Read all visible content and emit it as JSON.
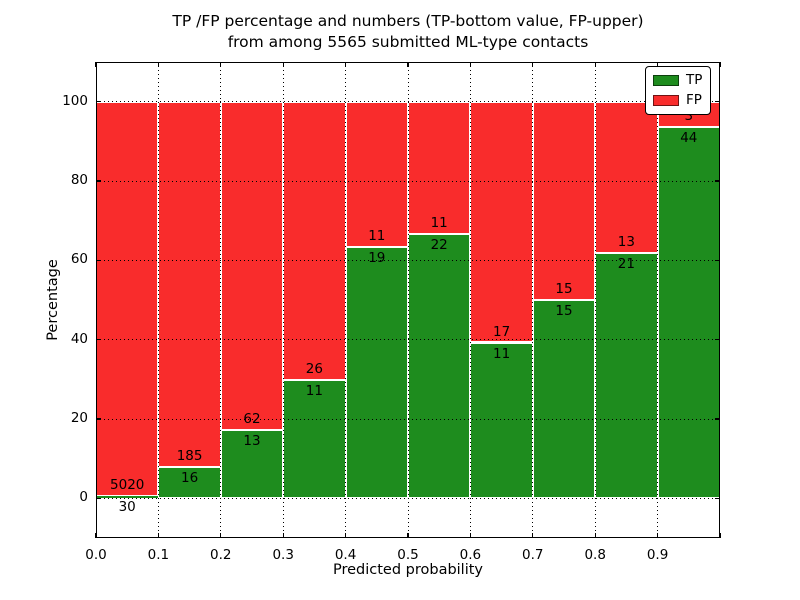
{
  "chart_data": {
    "type": "bar",
    "stacked": true,
    "normalized_to_percent": true,
    "title_line1": "TP /FP percentage and numbers (TP-bottom value, FP-upper)",
    "title_line2": "from among 5565 submitted ML-type contacts",
    "total_contacts": 5565,
    "bin_edges": [
      0.0,
      0.1,
      0.2,
      0.3,
      0.4,
      0.5,
      0.6,
      0.7,
      0.8,
      0.9,
      1.0
    ],
    "series": [
      {
        "name": "TP",
        "color": "#1e8c1e",
        "counts": [
          30,
          16,
          13,
          11,
          19,
          22,
          11,
          15,
          21,
          44
        ]
      },
      {
        "name": "FP",
        "color": "#f92c2c",
        "counts": [
          5020,
          185,
          62,
          26,
          11,
          11,
          17,
          15,
          13,
          3
        ]
      }
    ],
    "tp_percent": [
      0.59,
      7.96,
      17.33,
      29.73,
      63.33,
      66.67,
      39.29,
      50.0,
      61.76,
      93.62
    ],
    "xlabel": "Predicted probability",
    "ylabel": "Percentage",
    "x_tick_labels": [
      "0.0",
      "0.1",
      "0.2",
      "0.3",
      "0.4",
      "0.5",
      "0.6",
      "0.7",
      "0.8",
      "0.9"
    ],
    "y_ticks": [
      0,
      20,
      40,
      60,
      80,
      100
    ],
    "xlim": [
      0.0,
      1.0
    ],
    "ylim": [
      -10,
      110
    ],
    "grid": {
      "style": "dotted",
      "color": "#000000",
      "h_lines": [
        0,
        20,
        40,
        60,
        80,
        100
      ],
      "v_lines": [
        0.1,
        0.2,
        0.3,
        0.4,
        0.5,
        0.6,
        0.7,
        0.8,
        0.9
      ]
    },
    "legend": {
      "position": "upper right",
      "entries": [
        "TP",
        "FP"
      ]
    }
  }
}
